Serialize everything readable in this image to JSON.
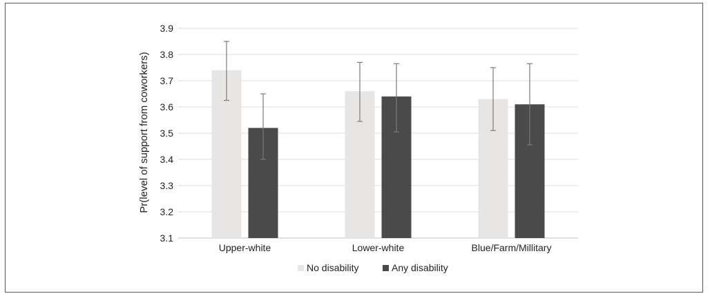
{
  "chart_data": {
    "type": "bar",
    "title": "",
    "xlabel": "",
    "ylabel": "Pr(level of support from coworkers)",
    "categories": [
      "Upper-white",
      "Lower-white",
      "Blue/Farm/Millitary"
    ],
    "series": [
      {
        "name": "No disability",
        "color": "#e7e6e5",
        "values": [
          3.74,
          3.66,
          3.63
        ],
        "err_low": [
          3.625,
          3.545,
          3.51
        ],
        "err_high": [
          3.85,
          3.77,
          3.75
        ]
      },
      {
        "name": "Any disability",
        "color": "#4a4a4a",
        "values": [
          3.52,
          3.64,
          3.61
        ],
        "err_low": [
          3.4,
          3.505,
          3.455
        ],
        "err_high": [
          3.65,
          3.765,
          3.765
        ]
      }
    ],
    "ylim": [
      3.1,
      3.9
    ],
    "yticks": [
      "3.1",
      "3.2",
      "3.3",
      "3.4",
      "3.5",
      "3.6",
      "3.7",
      "3.8",
      "3.9"
    ],
    "grid": true,
    "legend_position": "bottom"
  }
}
